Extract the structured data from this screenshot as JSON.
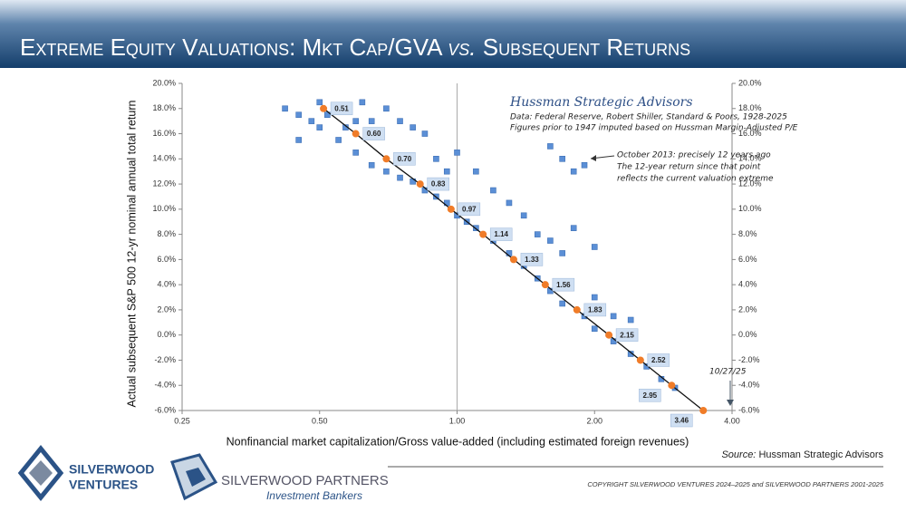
{
  "header": {
    "title_parts": [
      "Extreme Equity Valuations: Mkt Cap/GVA ",
      "vs.",
      " Subsequent Returns"
    ]
  },
  "chart_data": {
    "type": "scatter",
    "y_label": "Actual subsequent S&P 500 12-yr nominal annual total return",
    "x_label": "Nonfinancial market capitalization/Gross value-added (including estimated foreign revenues)",
    "x_log": true,
    "xlim": [
      0.25,
      4
    ],
    "xticks": [
      {
        "value": 0.25,
        "label": "0.25"
      },
      {
        "value": 0.5,
        "label": "0.50"
      },
      {
        "value": 1,
        "label": "1.00"
      },
      {
        "value": 2,
        "label": "2.00"
      },
      {
        "value": 4,
        "label": "4.00"
      }
    ],
    "ylim": [
      -6,
      20
    ],
    "yticks": [
      {
        "value": -6,
        "label": "-6.0%"
      },
      {
        "value": -4,
        "label": "-4.0%"
      },
      {
        "value": -2,
        "label": "-2.0%"
      },
      {
        "value": 0,
        "label": "0.0%"
      },
      {
        "value": 2,
        "label": "2.0%"
      },
      {
        "value": 4,
        "label": "4.0%"
      },
      {
        "value": 6,
        "label": "6.0%"
      },
      {
        "value": 8,
        "label": "8.0%"
      },
      {
        "value": 10,
        "label": "10.0%"
      },
      {
        "value": 12,
        "label": "12.0%"
      },
      {
        "value": 14,
        "label": "14.0%"
      },
      {
        "value": 16,
        "label": "16.0%"
      },
      {
        "value": 18,
        "label": "18.0%"
      },
      {
        "value": 20,
        "label": "20.0%"
      }
    ],
    "y2lim": [
      -6,
      20
    ],
    "y2ticks": [
      {
        "value": -6,
        "label": "-6.0%"
      },
      {
        "value": -4,
        "label": "-4.0%"
      },
      {
        "value": -2,
        "label": "-2.0%"
      },
      {
        "value": 0,
        "label": "0.0%"
      },
      {
        "value": 2,
        "label": "2.0%"
      },
      {
        "value": 4,
        "label": "4.0%"
      },
      {
        "value": 6,
        "label": "6.0%"
      },
      {
        "value": 8,
        "label": "8.0%"
      },
      {
        "value": 10,
        "label": "10.0%"
      },
      {
        "value": 12,
        "label": "12.0%"
      },
      {
        "value": 14,
        "label": "14.0%"
      },
      {
        "value": 16,
        "label": "16.0%"
      },
      {
        "value": 18,
        "label": "18.0%"
      },
      {
        "value": 20,
        "label": "20.0%"
      }
    ],
    "grid_x": [
      1
    ],
    "series": [
      {
        "color": "#5b8fd6",
        "x": [
          0.42,
          0.45,
          0.48,
          0.5,
          0.52,
          0.55,
          0.57,
          0.6,
          0.62,
          0.65,
          0.68,
          0.7,
          0.75,
          0.8,
          0.85,
          0.5,
          0.55,
          0.6,
          0.65,
          0.7,
          0.75,
          0.8,
          0.85,
          0.9,
          0.95,
          1.0,
          1.05,
          1.1,
          1.2,
          1.3,
          1.4,
          1.5,
          1.6,
          1.7,
          1.9,
          2.0,
          2.2,
          2.4,
          2.6,
          2.8,
          3.0,
          1.0,
          1.1,
          1.2,
          1.3,
          1.4,
          1.5,
          1.6,
          1.7,
          1.8,
          2.0,
          1.6,
          1.7,
          1.9,
          1.8,
          2.0,
          2.2,
          2.4,
          0.9,
          0.95,
          0.45
        ],
        "values": [
          18,
          17.5,
          17,
          18.5,
          17.5,
          18,
          16.5,
          17,
          18.5,
          17,
          16.2,
          18,
          17,
          16.5,
          16,
          16.5,
          15.5,
          14.5,
          13.5,
          13,
          12.5,
          12.2,
          11.5,
          11,
          10.5,
          9.5,
          9,
          8.5,
          7.5,
          6.5,
          5.5,
          4.5,
          3.5,
          2.5,
          1.5,
          0.5,
          -0.5,
          -1.5,
          -2.5,
          -3.5,
          -4.2,
          14.5,
          13,
          11.5,
          10.5,
          9.5,
          8,
          7.5,
          6.5,
          8.5,
          7,
          15,
          14,
          13.5,
          13,
          3,
          1.5,
          1.2,
          14,
          13,
          15.5
        ]
      },
      {
        "color": "#f07c28",
        "x": [
          0.51,
          0.6,
          0.7,
          0.83,
          0.97,
          1.14,
          1.33,
          1.56,
          1.83,
          2.15,
          2.52,
          2.95,
          3.46
        ],
        "point_labels": [
          "0.51",
          "0.60",
          "0.70",
          "0.83",
          "0.97",
          "1.14",
          "1.33",
          "1.56",
          "1.83",
          "2.15",
          "2.52",
          "2.95",
          "3.46"
        ],
        "values": [
          18,
          16,
          14,
          12,
          10,
          8,
          6,
          4,
          2,
          0,
          -2,
          -4,
          -6
        ]
      }
    ],
    "annotations": {
      "source_title": "Hussman Strategic Advisors",
      "source_lines": [
        "Data: Federal Reserve, Robert Shiller, Standard & Poors, 1928-2025",
        "Figures prior to 1947 imputed based on Hussman Margin-Adjusted P/E"
      ],
      "callout": [
        "October 2013: precisely 12 years ago",
        "The 12-year return since that point",
        "reflects the current valuation extreme"
      ],
      "date": "10/27/25"
    }
  },
  "footer": {
    "source_label": "Source:",
    "source": "Hussman Strategic Advisors",
    "copyright": "COPYRIGHT SILVERWOOD VENTURES 2024–2025 and SILVERWOOD PARTNERS 2001-2025",
    "logo1": [
      "SILVERWOOD",
      "VENTURES"
    ],
    "logo2": [
      "SILVERWOOD PARTNERS",
      "Investment Bankers"
    ]
  }
}
